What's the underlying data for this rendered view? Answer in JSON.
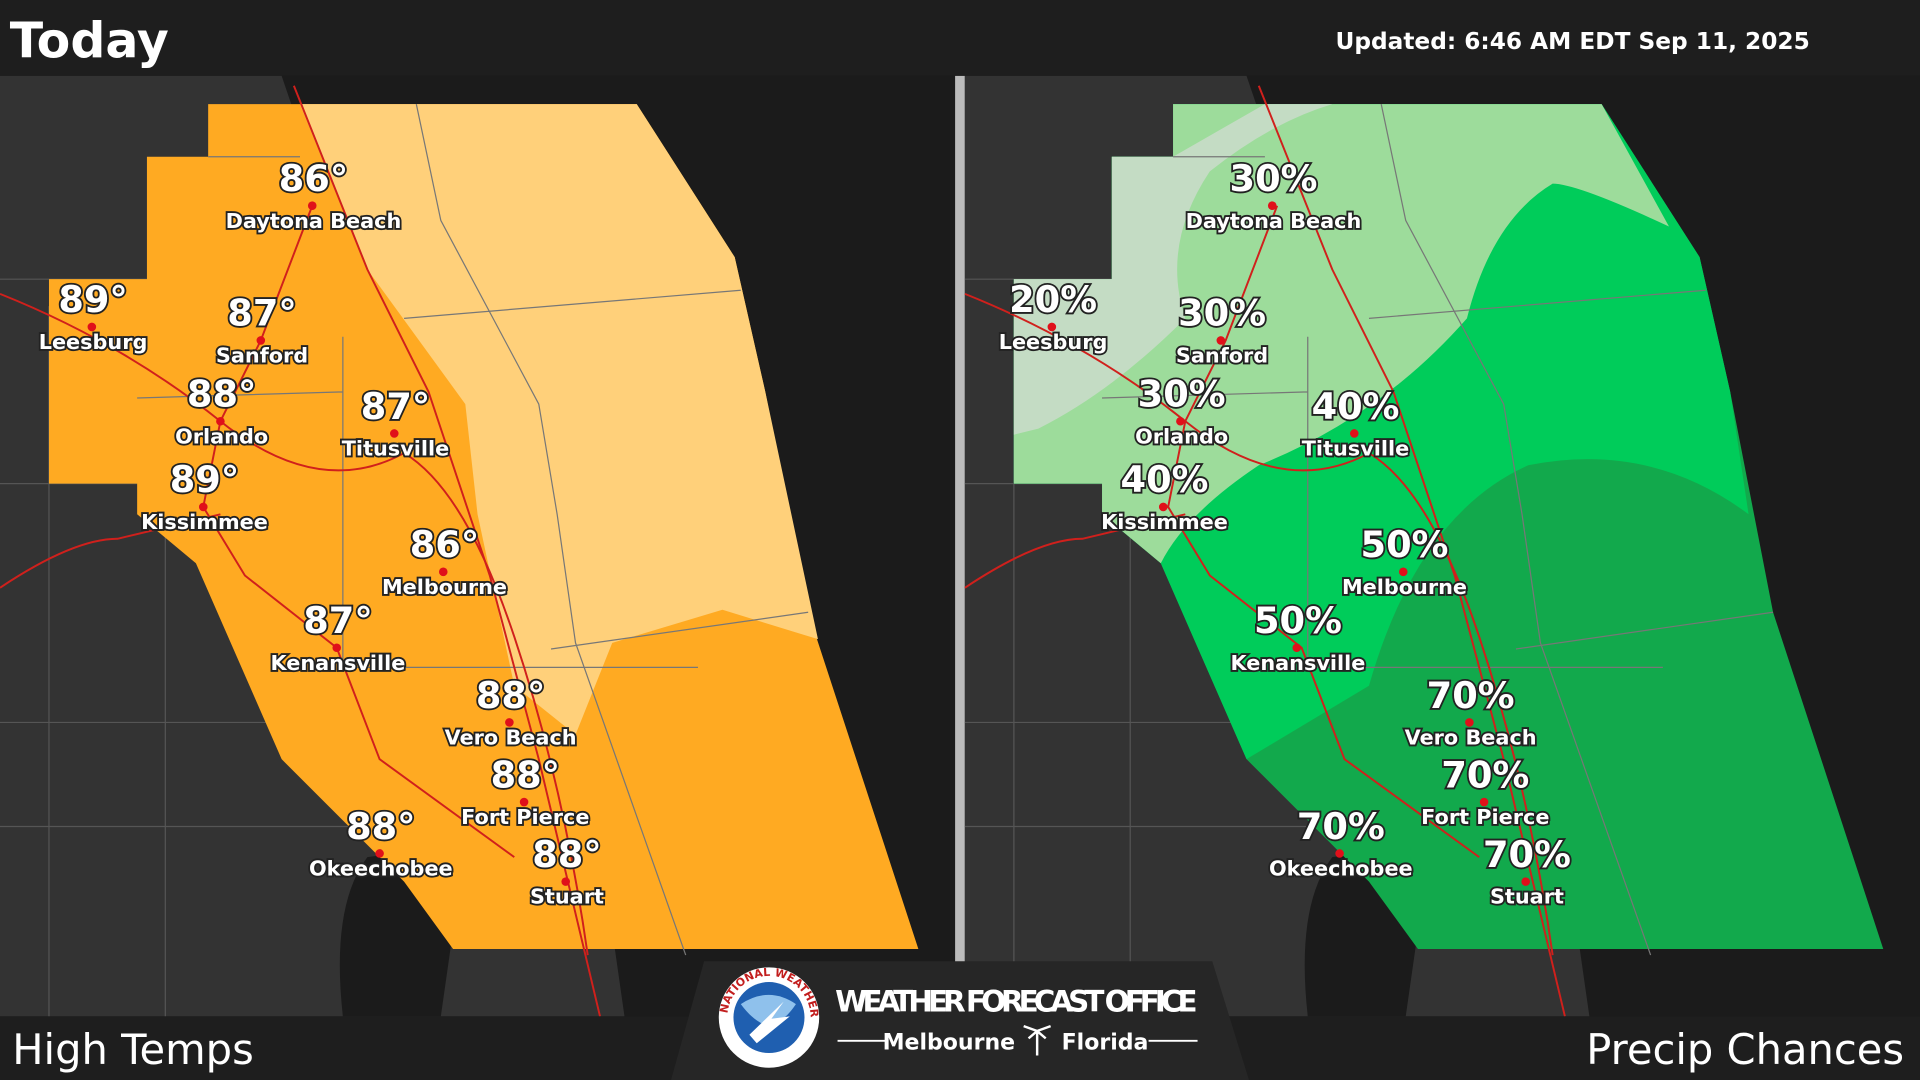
{
  "header": {
    "title": "Today",
    "updated": "Updated:  6:46 AM EDT Sep 11, 2025"
  },
  "panels": [
    {
      "label": "High Temps"
    },
    {
      "label": "Precip Chances"
    }
  ],
  "cities": [
    {
      "name": "Daytona Beach",
      "high": "86°",
      "precip": "30%"
    },
    {
      "name": "Leesburg",
      "high": "89°",
      "precip": "20%"
    },
    {
      "name": "Sanford",
      "high": "87°",
      "precip": "30%"
    },
    {
      "name": "Orlando",
      "high": "88°",
      "precip": "30%"
    },
    {
      "name": "Kissimmee",
      "high": "89°",
      "precip": "40%"
    },
    {
      "name": "Titusville",
      "high": "87°",
      "precip": "40%"
    },
    {
      "name": "Melbourne",
      "high": "86°",
      "precip": "50%"
    },
    {
      "name": "Kenansville",
      "high": "87°",
      "precip": "50%"
    },
    {
      "name": "Vero Beach",
      "high": "88°",
      "precip": "70%"
    },
    {
      "name": "Fort Pierce",
      "high": "88°",
      "precip": "70%"
    },
    {
      "name": "Okeechobee",
      "high": "88°",
      "precip": "70%"
    },
    {
      "name": "Stuart",
      "high": "88°",
      "precip": "70%"
    }
  ],
  "logo": {
    "seal": "NATIONAL WEATHER SERVICE",
    "office": "WEATHER FORECAST OFFICE",
    "city": "Melbourne",
    "state": "Florida"
  }
}
